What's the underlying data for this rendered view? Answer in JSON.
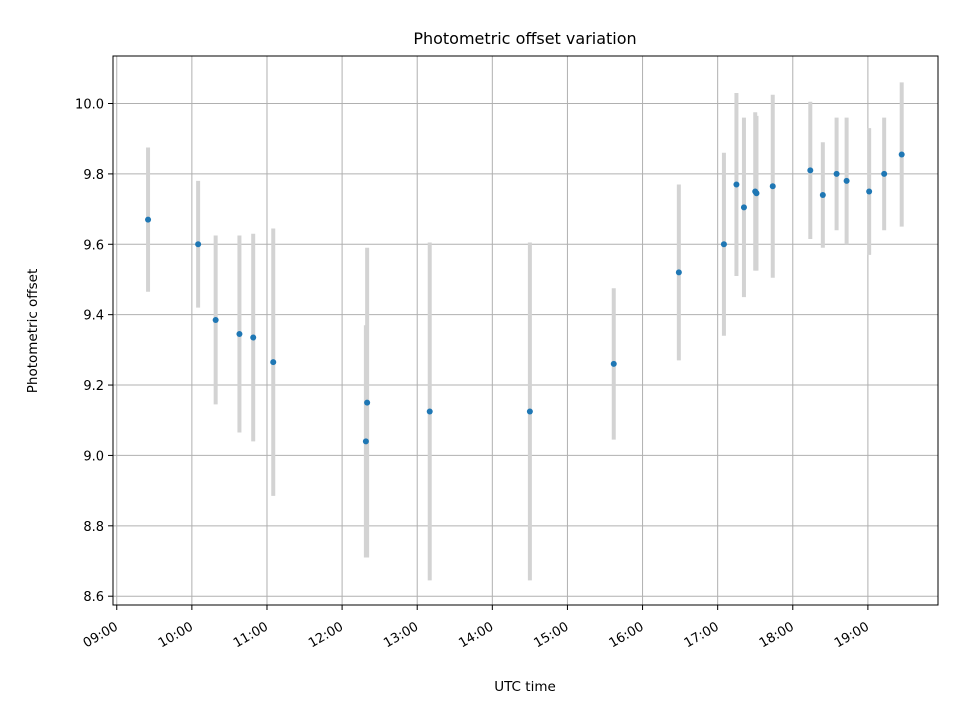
{
  "chart_data": {
    "type": "scatter",
    "title": "Photometric offset variation",
    "xlabel": "UTC time",
    "ylabel": "Photometric offset",
    "x_ticks": [
      "09:00",
      "10:00",
      "11:00",
      "12:00",
      "13:00",
      "14:00",
      "15:00",
      "16:00",
      "17:00",
      "18:00",
      "19:00"
    ],
    "y_ticks": [
      "8.6",
      "8.8",
      "9.0",
      "9.2",
      "9.4",
      "9.6",
      "9.8",
      "10.0"
    ],
    "xlim": [
      "08:57",
      "19:56"
    ],
    "ylim": [
      8.575,
      10.135
    ],
    "grid": true,
    "colors": {
      "point": "#1f77b4",
      "errorbar": "#d3d3d3",
      "grid": "#b0b0b0"
    },
    "points": [
      {
        "t": "09:25",
        "y": 9.67,
        "err": 0.205
      },
      {
        "t": "10:05",
        "y": 9.6,
        "err": 0.18
      },
      {
        "t": "10:19",
        "y": 9.385,
        "err": 0.24
      },
      {
        "t": "10:38",
        "y": 9.345,
        "err": 0.28
      },
      {
        "t": "10:49",
        "y": 9.335,
        "err": 0.295
      },
      {
        "t": "11:05",
        "y": 9.265,
        "err": 0.38
      },
      {
        "t": "12:19",
        "y": 9.04,
        "err": 0.33
      },
      {
        "t": "12:20",
        "y": 9.15,
        "err": 0.44
      },
      {
        "t": "13:10",
        "y": 9.125,
        "err": 0.48
      },
      {
        "t": "14:30",
        "y": 9.125,
        "err": 0.48
      },
      {
        "t": "15:37",
        "y": 9.26,
        "err": 0.215
      },
      {
        "t": "16:29",
        "y": 9.52,
        "err": 0.25
      },
      {
        "t": "17:05",
        "y": 9.6,
        "err": 0.26
      },
      {
        "t": "17:15",
        "y": 9.77,
        "err": 0.26
      },
      {
        "t": "17:21",
        "y": 9.705,
        "err": 0.255
      },
      {
        "t": "17:30",
        "y": 9.75,
        "err": 0.225
      },
      {
        "t": "17:31",
        "y": 9.745,
        "err": 0.22
      },
      {
        "t": "17:44",
        "y": 9.765,
        "err": 0.26
      },
      {
        "t": "18:14",
        "y": 9.81,
        "err": 0.195
      },
      {
        "t": "18:24",
        "y": 9.74,
        "err": 0.15
      },
      {
        "t": "18:35",
        "y": 9.8,
        "err": 0.16
      },
      {
        "t": "18:43",
        "y": 9.78,
        "err": 0.18
      },
      {
        "t": "19:01",
        "y": 9.75,
        "err": 0.18
      },
      {
        "t": "19:13",
        "y": 9.8,
        "err": 0.16
      },
      {
        "t": "19:27",
        "y": 9.855,
        "err": 0.205
      }
    ]
  }
}
